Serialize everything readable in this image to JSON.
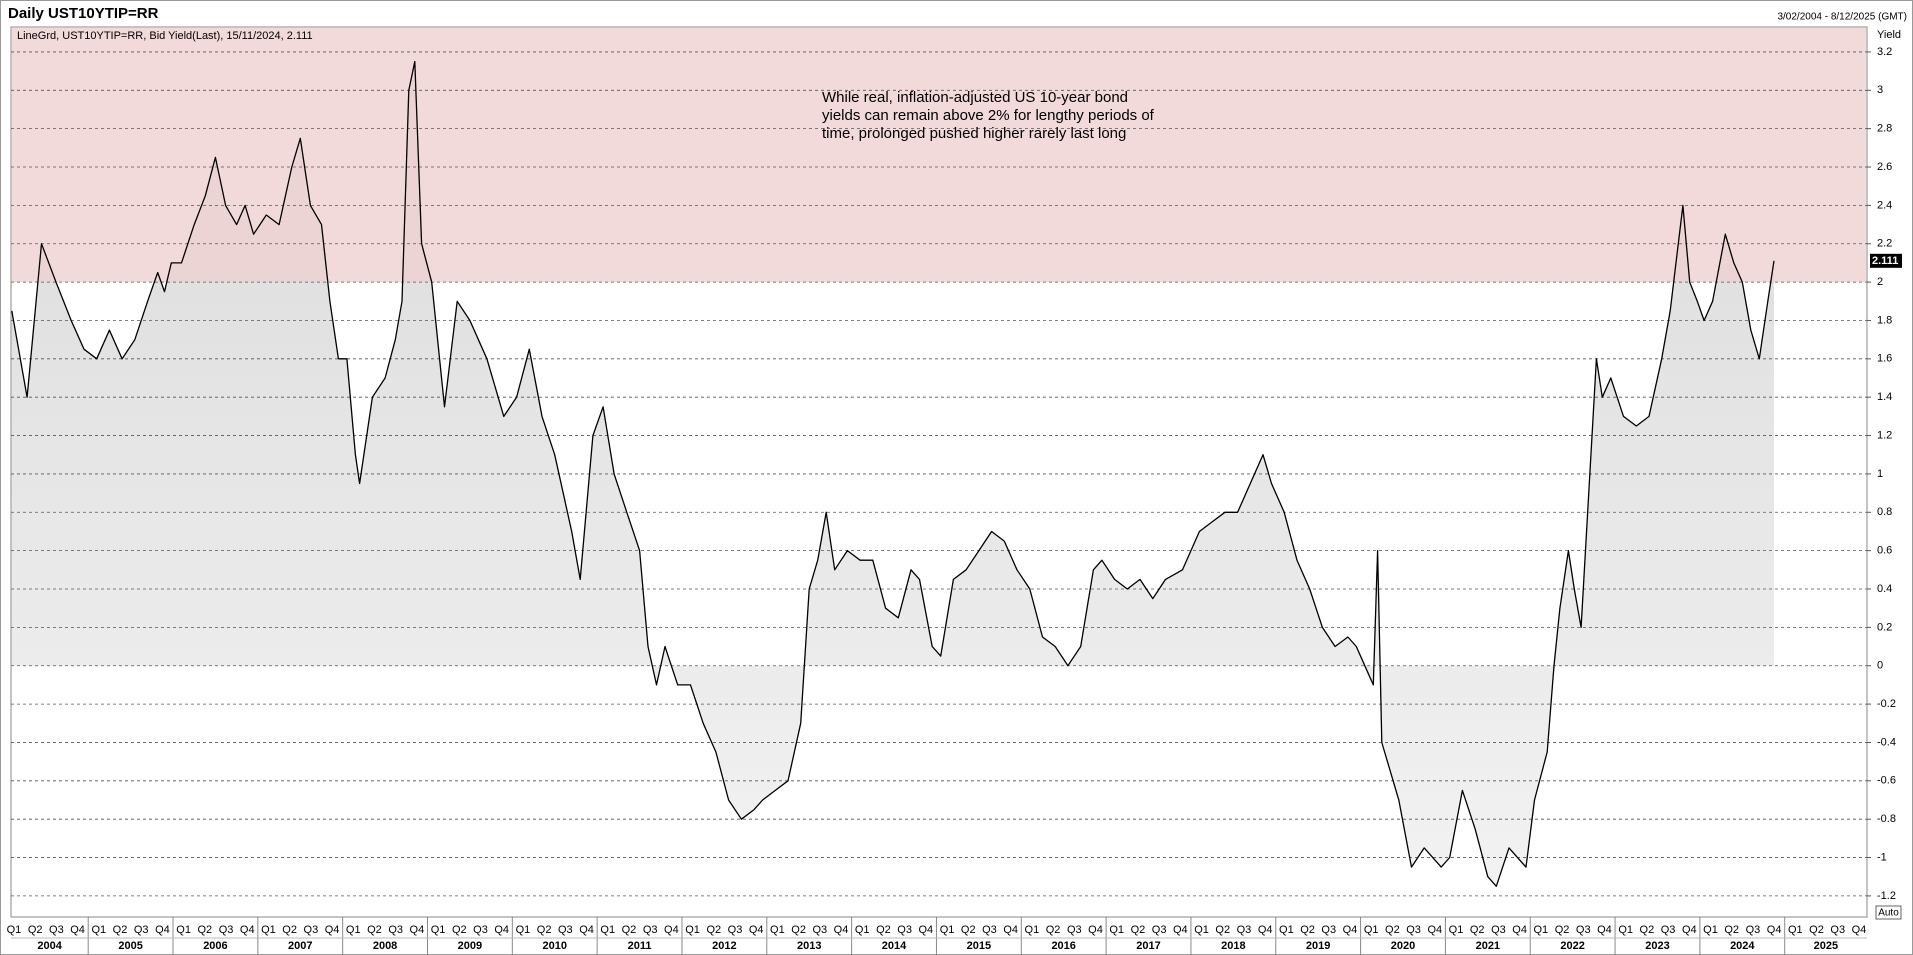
{
  "chart_data": {
    "type": "line",
    "title": "Daily UST10YTIP=RR",
    "date_range": "3/02/2004 - 8/12/2025 (GMT)",
    "legend_text": "LineGrd, UST10YTIP=RR, Bid Yield(Last), 15/11/2024, 2.111",
    "y_axis_label": "Yield",
    "button_label": "Auto",
    "annotation": [
      "While real, inflation-adjusted US 10-year bond",
      "yields can remain above 2% for lengthy periods of",
      "time, prolonged pushed higher rarely last long"
    ],
    "x": [
      2004.1,
      2004.28,
      2004.45,
      2004.62,
      2004.8,
      2004.95,
      2005.1,
      2005.25,
      2005.4,
      2005.55,
      2005.7,
      2005.82,
      2005.9,
      2005.98,
      2006.1,
      2006.25,
      2006.38,
      2006.5,
      2006.62,
      2006.75,
      2006.85,
      2006.95,
      2007.1,
      2007.25,
      2007.4,
      2007.5,
      2007.62,
      2007.75,
      2007.85,
      2007.95,
      2008.05,
      2008.15,
      2008.2,
      2008.35,
      2008.5,
      2008.62,
      2008.7,
      2008.78,
      2008.85,
      2008.93,
      2009.05,
      2009.2,
      2009.35,
      2009.5,
      2009.7,
      2009.9,
      2010.05,
      2010.2,
      2010.35,
      2010.5,
      2010.7,
      2010.8,
      2010.95,
      2011.07,
      2011.2,
      2011.35,
      2011.5,
      2011.6,
      2011.7,
      2011.8,
      2011.95,
      2012.1,
      2012.25,
      2012.4,
      2012.55,
      2012.7,
      2012.85,
      2012.95,
      2013.1,
      2013.25,
      2013.4,
      2013.5,
      2013.6,
      2013.7,
      2013.8,
      2013.95,
      2014.1,
      2014.25,
      2014.4,
      2014.55,
      2014.7,
      2014.8,
      2014.95,
      2015.05,
      2015.2,
      2015.35,
      2015.5,
      2015.65,
      2015.8,
      2015.95,
      2016.1,
      2016.25,
      2016.4,
      2016.55,
      2016.7,
      2016.85,
      2016.95,
      2017.1,
      2017.25,
      2017.4,
      2017.55,
      2017.7,
      2017.9,
      2018.1,
      2018.25,
      2018.4,
      2018.55,
      2018.7,
      2018.85,
      2018.95,
      2019.1,
      2019.25,
      2019.4,
      2019.55,
      2019.7,
      2019.85,
      2019.95,
      2020.05,
      2020.15,
      2020.2,
      2020.25,
      2020.45,
      2020.6,
      2020.75,
      2020.95,
      2021.05,
      2021.2,
      2021.35,
      2021.5,
      2021.6,
      2021.75,
      2021.95,
      2022.05,
      2022.2,
      2022.28,
      2022.35,
      2022.45,
      2022.52,
      2022.6,
      2022.78,
      2022.85,
      2022.95,
      2023.1,
      2023.25,
      2023.4,
      2023.55,
      2023.65,
      2023.8,
      2023.88,
      2023.97,
      2024.05,
      2024.15,
      2024.3,
      2024.4,
      2024.5,
      2024.6,
      2024.7,
      2024.8,
      2024.874
    ],
    "values": [
      1.85,
      1.4,
      2.2,
      2.0,
      1.8,
      1.65,
      1.6,
      1.75,
      1.6,
      1.7,
      1.9,
      2.05,
      1.95,
      2.1,
      2.1,
      2.3,
      2.45,
      2.65,
      2.4,
      2.3,
      2.4,
      2.25,
      2.35,
      2.3,
      2.6,
      2.75,
      2.4,
      2.3,
      1.9,
      1.6,
      1.6,
      1.1,
      0.95,
      1.4,
      1.5,
      1.7,
      1.9,
      3.0,
      3.15,
      2.2,
      2.0,
      1.35,
      1.9,
      1.8,
      1.6,
      1.3,
      1.4,
      1.65,
      1.3,
      1.1,
      0.7,
      0.45,
      1.2,
      1.35,
      1.0,
      0.8,
      0.6,
      0.1,
      -0.1,
      0.1,
      -0.1,
      -0.1,
      -0.3,
      -0.45,
      -0.7,
      -0.8,
      -0.75,
      -0.7,
      -0.65,
      -0.6,
      -0.3,
      0.4,
      0.55,
      0.8,
      0.5,
      0.6,
      0.55,
      0.55,
      0.3,
      0.25,
      0.5,
      0.45,
      0.1,
      0.05,
      0.45,
      0.5,
      0.6,
      0.7,
      0.65,
      0.5,
      0.4,
      0.15,
      0.1,
      0.0,
      0.1,
      0.5,
      0.55,
      0.45,
      0.4,
      0.45,
      0.35,
      0.45,
      0.5,
      0.7,
      0.75,
      0.8,
      0.8,
      0.95,
      1.1,
      0.95,
      0.8,
      0.55,
      0.4,
      0.2,
      0.1,
      0.15,
      0.1,
      0.0,
      -0.1,
      0.6,
      -0.4,
      -0.7,
      -1.05,
      -0.95,
      -1.05,
      -1.0,
      -0.65,
      -0.85,
      -1.1,
      -1.15,
      -0.95,
      -1.05,
      -0.7,
      -0.45,
      0.0,
      0.3,
      0.6,
      0.4,
      0.2,
      1.6,
      1.4,
      1.5,
      1.3,
      1.25,
      1.3,
      1.6,
      1.85,
      2.4,
      2.0,
      1.9,
      1.8,
      1.9,
      2.25,
      2.1,
      2.0,
      1.75,
      1.6,
      1.9,
      2.111
    ],
    "color": "#000000",
    "area_color": "#d4d4d4",
    "highlight_above": 2,
    "highlight_color": "#efcfd1",
    "xlim": [
      2004.09,
      2025.97
    ],
    "xticks": [
      2004,
      2005,
      2006,
      2007,
      2008,
      2009,
      2010,
      2011,
      2012,
      2013,
      2014,
      2015,
      2016,
      2017,
      2018,
      2019,
      2020,
      2021,
      2022,
      2023,
      2024,
      2025
    ],
    "quarter_labels": [
      "Q1",
      "Q2",
      "Q3",
      "Q4"
    ],
    "ylim": [
      -1.31,
      3.33
    ],
    "yticks": [
      -1.2,
      -1,
      -0.8,
      -0.6,
      -0.4,
      -0.2,
      0,
      0.2,
      0.4,
      0.6,
      0.8,
      1,
      1.2,
      1.4,
      1.6,
      1.8,
      2,
      2.2,
      2.4,
      2.6,
      2.8,
      3,
      3.2
    ],
    "grid": true
  }
}
